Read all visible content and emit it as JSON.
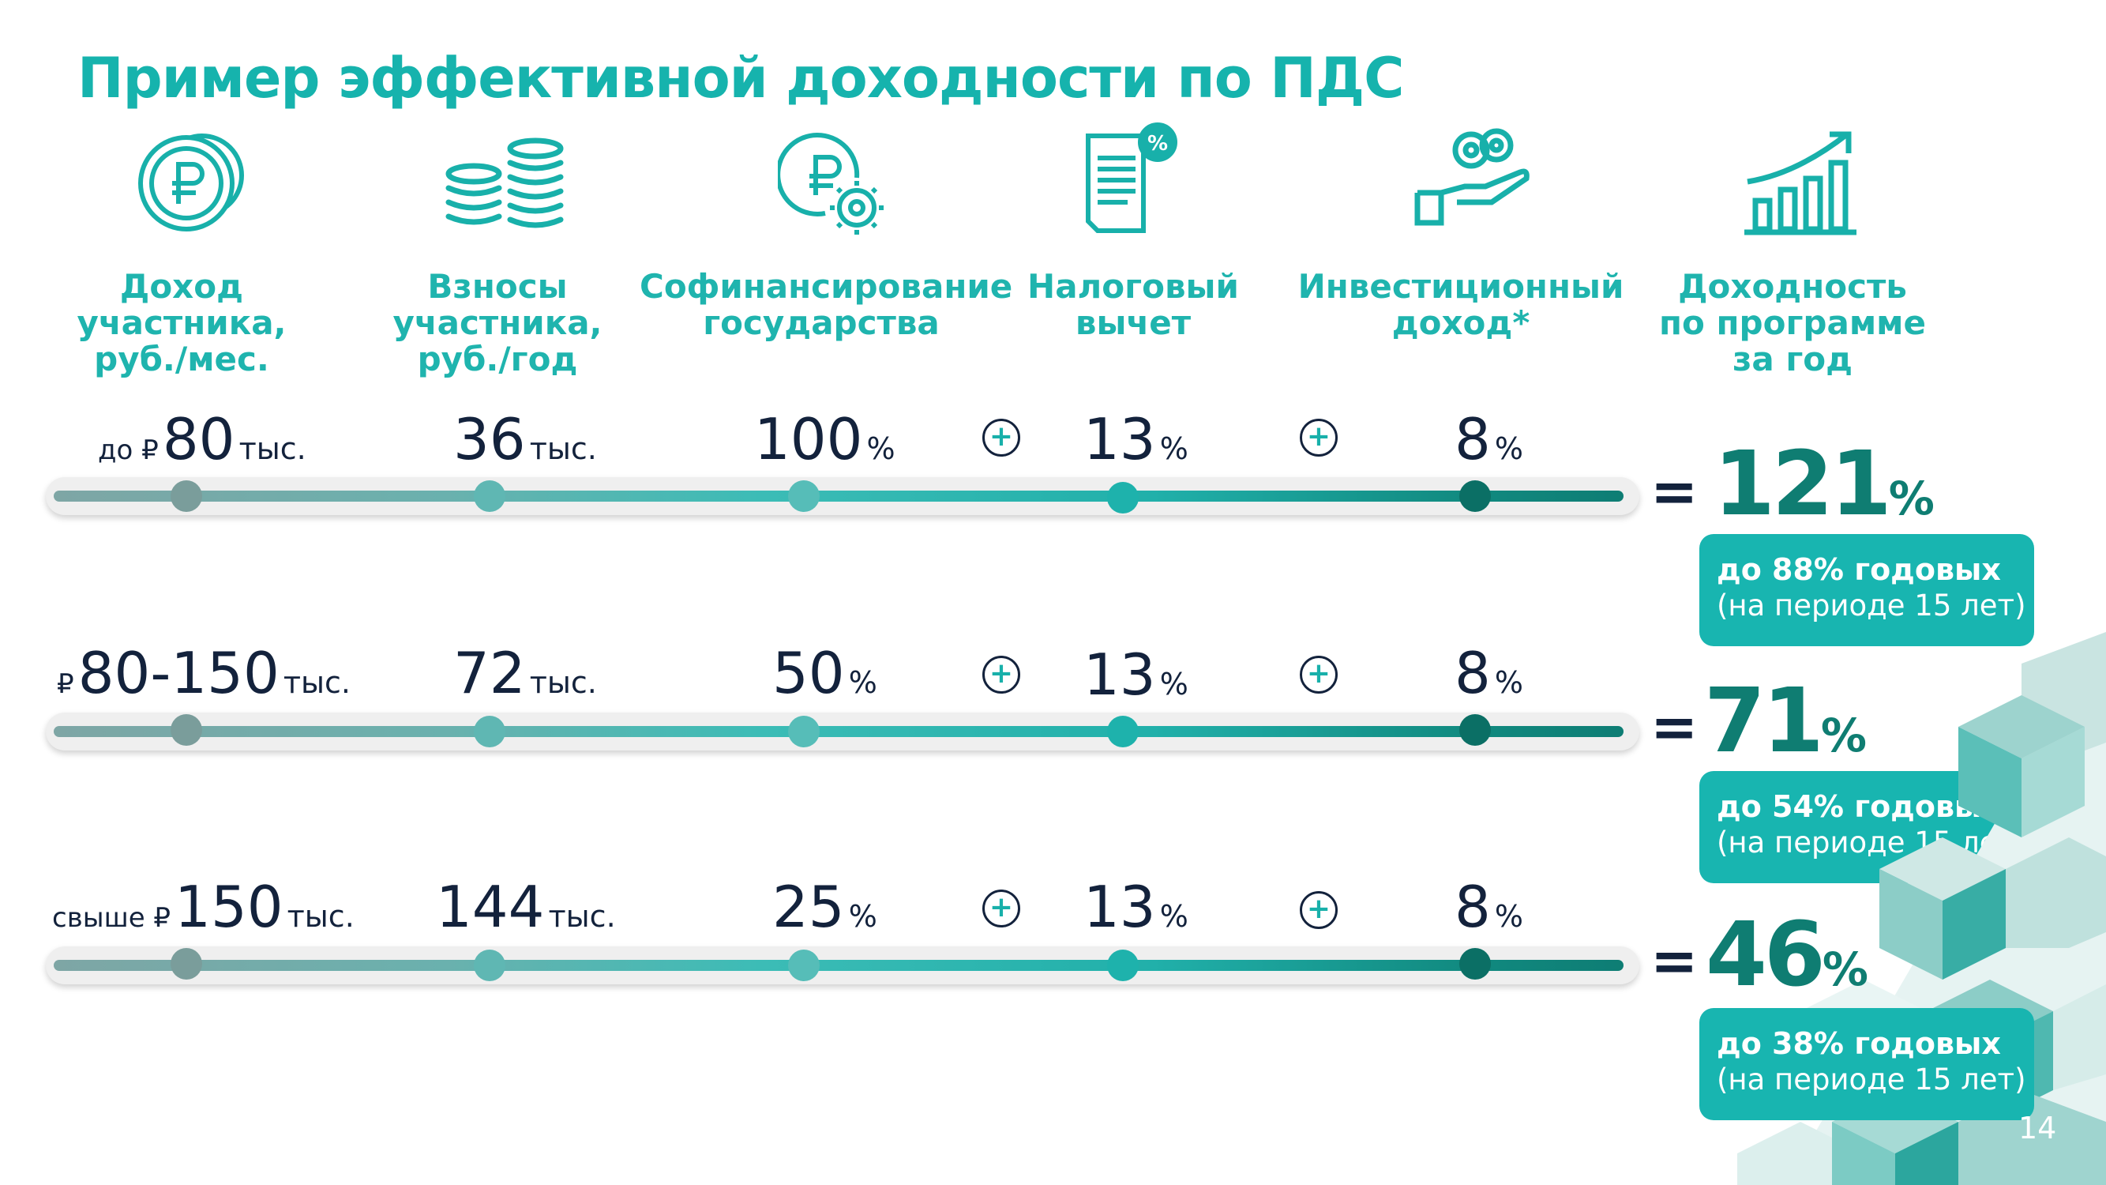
{
  "title": "Пример эффективной доходности по ПДС",
  "columns": [
    {
      "label": "Доход\nучастника,\nруб./мес.",
      "icon": "ruble-coins-icon"
    },
    {
      "label": "Взносы\nучастника,\nруб./год",
      "icon": "coin-stacks-icon"
    },
    {
      "label": "Софинансирование\nгосударства",
      "icon": "ruble-gear-icon"
    },
    {
      "label": "Налоговый\nвычет",
      "icon": "tax-document-percent-icon"
    },
    {
      "label": "Инвестиционный\nдоход*",
      "icon": "hand-coins-icon"
    },
    {
      "label": "Доходность\nпо программе\nза год",
      "icon": "growth-chart-icon"
    }
  ],
  "rows": [
    {
      "income_prefix": "до ₽",
      "income_value": "80",
      "income_unit": "тыс.",
      "contribution_value": "36",
      "contribution_unit": "тыс.",
      "cofinancing_value": "100",
      "cofinancing_unit": "%",
      "plus1": "+",
      "tax_value": "13",
      "tax_unit": "%",
      "plus2": "+",
      "invest_value": "8",
      "invest_unit": "%",
      "equals": "=",
      "result_value": "121",
      "result_unit": "%",
      "badge_line1": "до 88% годовых",
      "badge_line2": "(на периоде 15 лет)"
    },
    {
      "income_prefix": "₽",
      "income_value": "80-150",
      "income_unit": "тыс.",
      "contribution_value": "72",
      "contribution_unit": "тыс.",
      "cofinancing_value": "50",
      "cofinancing_unit": "%",
      "plus1": "+",
      "tax_value": "13",
      "tax_unit": "%",
      "plus2": "+",
      "invest_value": "8",
      "invest_unit": "%",
      "equals": "=",
      "result_value": "71",
      "result_unit": "%",
      "badge_line1": "до 54% годовых",
      "badge_line2": "(на периоде 15 лет)"
    },
    {
      "income_prefix": "свыше ₽",
      "income_value": "150",
      "income_unit": "тыс.",
      "contribution_value": "144",
      "contribution_unit": "тыс.",
      "cofinancing_value": "25",
      "cofinancing_unit": "%",
      "plus1": "+",
      "tax_value": "13",
      "tax_unit": "%",
      "plus2": "+",
      "invest_value": "8",
      "invest_unit": "%",
      "equals": "=",
      "result_value": "46",
      "result_unit": "%",
      "badge_line1": "до 38% годовых",
      "badge_line2": "(на периоде 15 лет)"
    }
  ],
  "page_number": "14",
  "colors": {
    "accent": "#16b3ad",
    "dark_teal": "#0f7d72",
    "navy": "#13223c",
    "badge": "#18b5b0"
  }
}
